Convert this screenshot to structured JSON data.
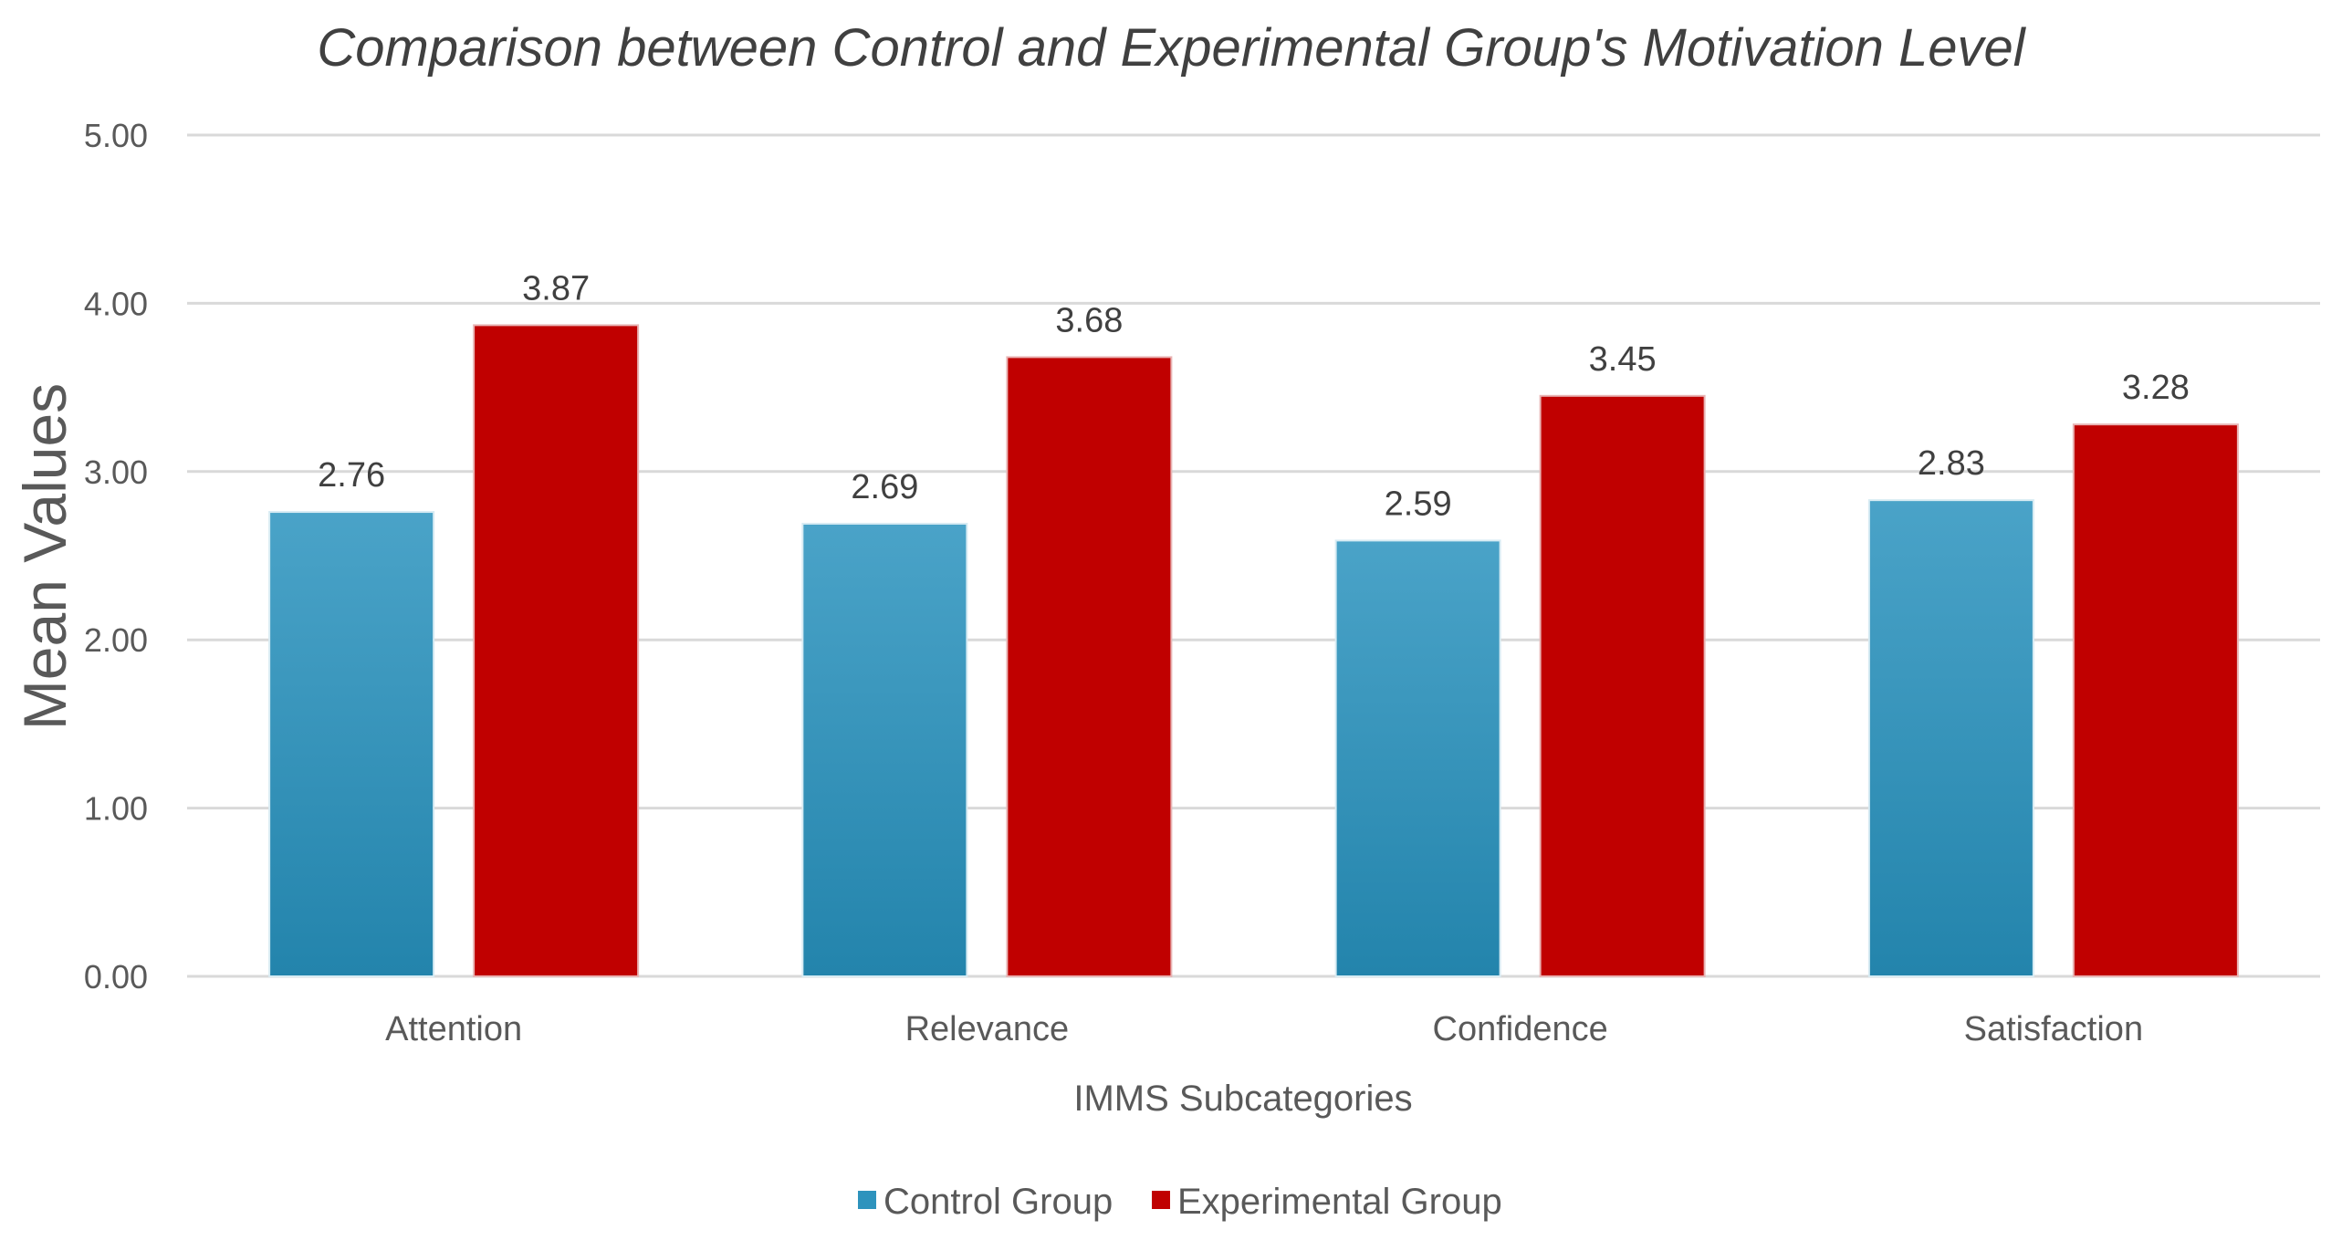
{
  "chart_data": {
    "type": "bar",
    "title": "Comparison between Control and Experimental Group's Motivation Level",
    "xlabel": "IMMS Subcategories",
    "ylabel": "Mean  Values",
    "categories": [
      "Attention",
      "Relevance",
      "Confidence",
      "Satisfaction"
    ],
    "series": [
      {
        "name": "Control Group",
        "values": [
          2.76,
          2.69,
          2.59,
          2.83
        ],
        "labels": [
          "2.76",
          "2.69",
          "2.59",
          "2.83"
        ],
        "color": "#2e93bd",
        "color_top": "#4aa3c8",
        "color_bottom": "#2384ac"
      },
      {
        "name": "Experimental Group",
        "values": [
          3.87,
          3.68,
          3.45,
          3.28
        ],
        "labels": [
          "3.87",
          "3.68",
          "3.45",
          "3.28"
        ],
        "color": "#c00000"
      }
    ],
    "ylim": [
      0,
      5
    ],
    "yticks": [
      "0.00",
      "1.00",
      "2.00",
      "3.00",
      "4.00",
      "5.00"
    ],
    "grid": true,
    "legend_position": "bottom"
  }
}
